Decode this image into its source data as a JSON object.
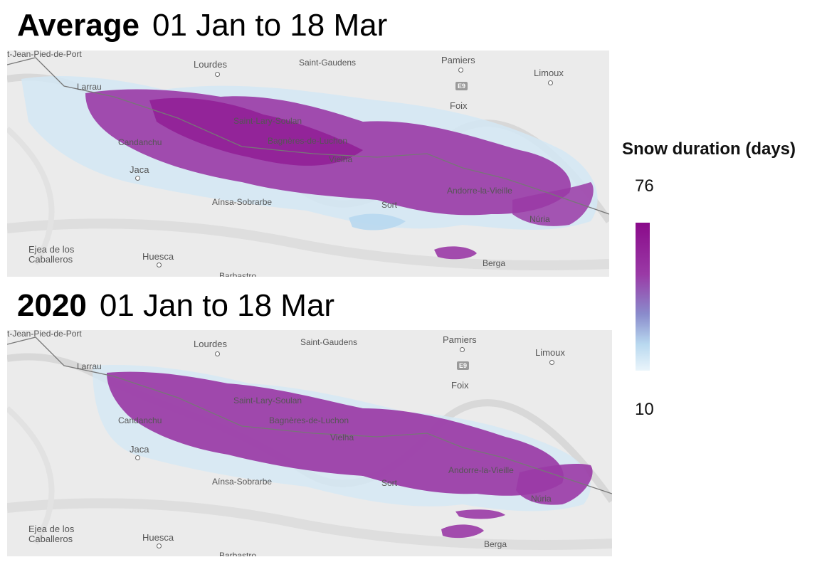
{
  "panels": [
    {
      "title_bold": "Average",
      "title_range": "01 Jan to 18 Mar"
    },
    {
      "title_bold": "2020",
      "title_range": "01 Jan to 18 Mar"
    }
  ],
  "map_labels": {
    "lourdes": "Lourdes",
    "saint_gaudens": "Saint-Gaudens",
    "pamiers": "Pamiers",
    "limoux": "Limoux",
    "foix": "Foix",
    "e9": "E9",
    "larrau": "Larrau",
    "st_jean": "t-Jean-Pied-de-Port",
    "saint_lary": "Saint-Lary-Soulan",
    "bagneres": "Bagnères-de-Luchon",
    "candanchu": "Candanchu",
    "vielha": "Vielha",
    "jaca": "Jaca",
    "andorre": "Andorre-la-Vieille",
    "ainsa": "Aínsa-Sobrarbe",
    "sort": "Sort",
    "nuria": "Núria",
    "ejea1": "Ejea de los",
    "ejea2": "Caballeros",
    "huesca": "Huesca",
    "berga": "Berga",
    "barbastro": "Barbastro"
  },
  "legend": {
    "title": "Snow duration (days)",
    "max": "76",
    "min": "10",
    "colors": [
      "#8a0a8a",
      "#9a3aa6",
      "#8a8ccc",
      "#b8d8ef",
      "#eaf5fb"
    ]
  }
}
